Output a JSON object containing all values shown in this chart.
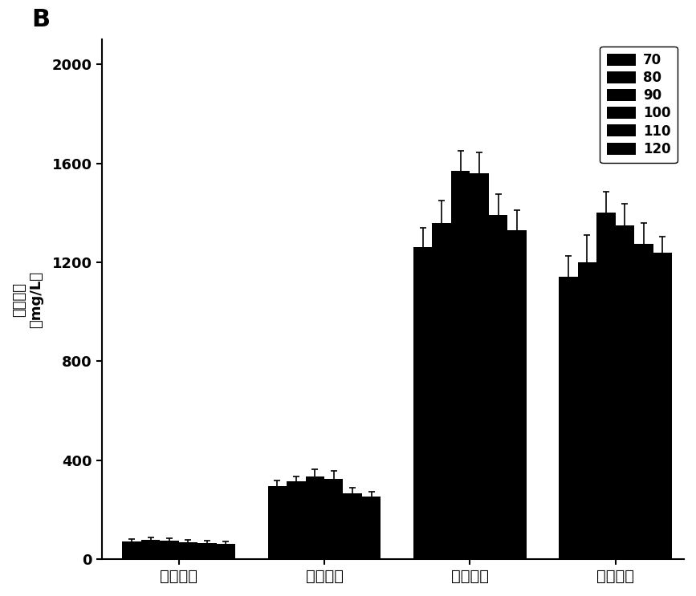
{
  "categories": [
    "戊酸乙酣",
    "己酸乙酣",
    "辛酸乙酣",
    "缸酸乙酣"
  ],
  "legend_labels": [
    "70",
    "80",
    "90",
    "100",
    "110",
    "120"
  ],
  "values": [
    [
      72,
      78,
      75,
      70,
      65,
      62
    ],
    [
      295,
      315,
      335,
      325,
      268,
      252
    ],
    [
      1260,
      1360,
      1570,
      1560,
      1390,
      1330
    ],
    [
      1140,
      1200,
      1400,
      1350,
      1275,
      1240
    ]
  ],
  "errors": [
    [
      10,
      10,
      10,
      10,
      10,
      10
    ],
    [
      22,
      18,
      28,
      32,
      22,
      22
    ],
    [
      80,
      90,
      80,
      85,
      85,
      80
    ],
    [
      85,
      110,
      85,
      85,
      85,
      65
    ]
  ],
  "ylabel_line1": "脂的浓度",
  "ylabel_line2": "（mg/L）",
  "title": "B",
  "ylim": [
    0,
    2100
  ],
  "yticks": [
    0,
    400,
    800,
    1200,
    1600,
    2000
  ],
  "background_color": "#ffffff",
  "bar_width": 0.11,
  "group_positions": [
    0.35,
    1.2,
    2.05,
    2.9
  ]
}
